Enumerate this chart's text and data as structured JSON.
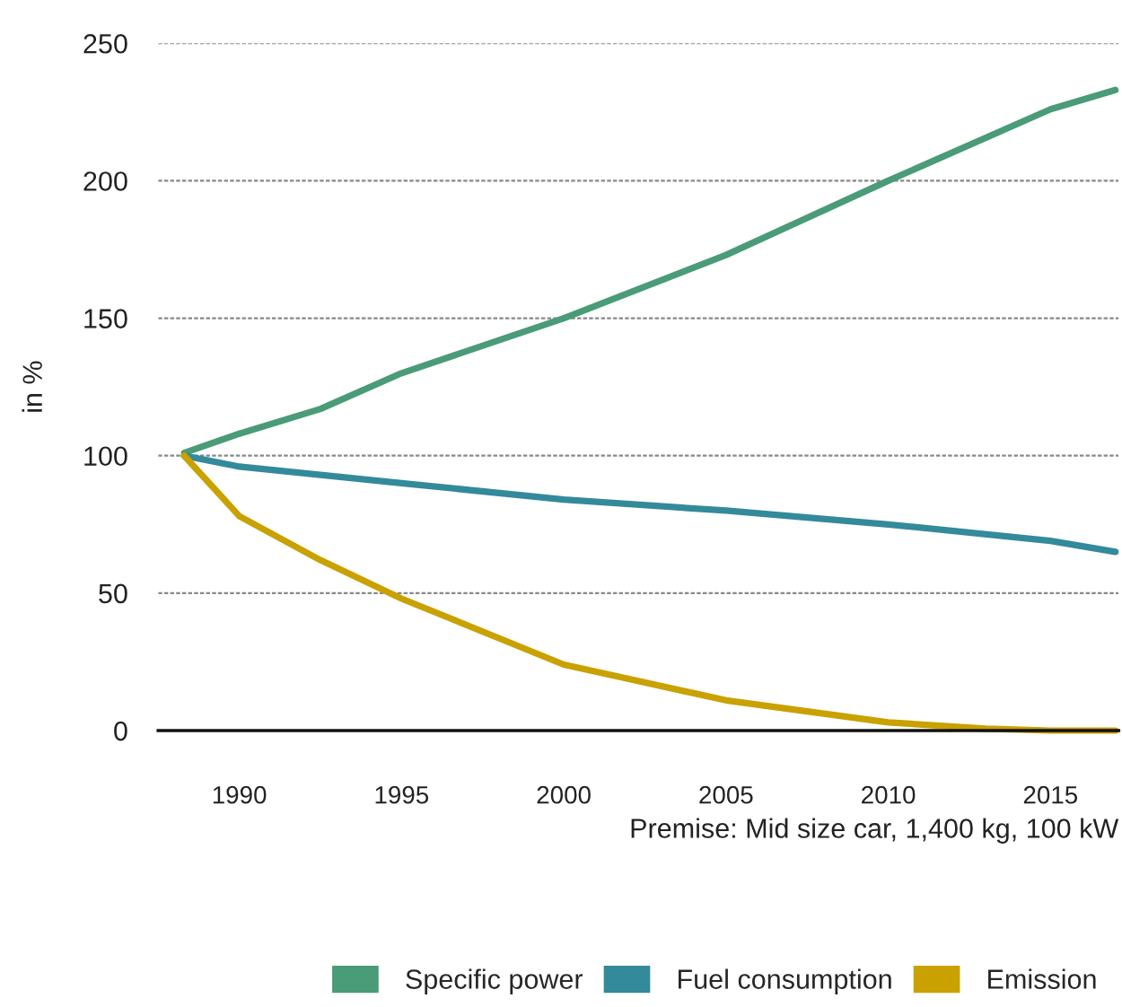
{
  "chart_data": {
    "type": "line",
    "ylabel": "in %",
    "annotations": [
      "Premise: Mid size car, 1,400 kg, 100 kW"
    ],
    "xlim": [
      1987.5,
      2017.1
    ],
    "xticks": [
      1990,
      1995,
      2000,
      2005,
      2010,
      2015
    ],
    "ylim": [
      0,
      250
    ],
    "yticks": [
      0,
      50,
      100,
      150,
      200,
      250
    ],
    "grid": "y",
    "legend": "bottom right",
    "marker": "none",
    "line_style": "solid",
    "series": [
      {
        "name": "Specific power",
        "color": "#4a9b77",
        "x": [
          1988.3,
          1990,
          1992.5,
          1995,
          2000,
          2005,
          2010,
          2015,
          2017
        ],
        "values": [
          101,
          108,
          117,
          130,
          150,
          173,
          200,
          226,
          233
        ]
      },
      {
        "name": "Fuel consumption",
        "color": "#338a9b",
        "x": [
          1988.3,
          1990,
          1995,
          2000,
          2005,
          2010,
          2015,
          2017
        ],
        "values": [
          100,
          96,
          90,
          84,
          80,
          75,
          69,
          65
        ]
      },
      {
        "name": "Emission",
        "color": "#c9a100",
        "x": [
          1988.3,
          1990,
          1992.5,
          1995,
          2000,
          2005,
          2010,
          2013,
          2015,
          2017
        ],
        "values": [
          100,
          78,
          62,
          48,
          24,
          11,
          3,
          0.7,
          0,
          0
        ]
      }
    ]
  }
}
